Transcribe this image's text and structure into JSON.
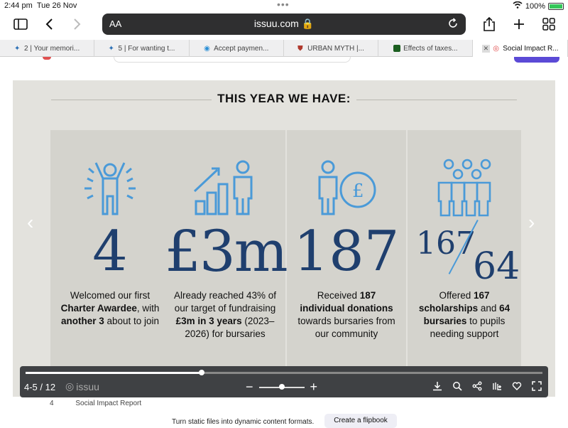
{
  "status": {
    "time": "2:44 pm",
    "date": "Tue 26 Nov",
    "battery": "100%"
  },
  "browser": {
    "aa_label": "AA",
    "url": "issuu.com",
    "tabs": [
      {
        "label": "2 | Your memori...",
        "active": false
      },
      {
        "label": "5 | For wanting t...",
        "active": false
      },
      {
        "label": "Accept paymen...",
        "active": false
      },
      {
        "label": "URBAN MYTH |...",
        "active": false
      },
      {
        "label": "Effects of taxes...",
        "active": false
      },
      {
        "label": "Social Impact R...",
        "active": true
      }
    ]
  },
  "doc": {
    "heading": "THIS YEAR WE HAVE:",
    "panels": [
      {
        "icon": "celebrating-person-icon",
        "figure": "4",
        "desc_html": "Welcomed our first <b>Charter Awardee</b>, with <b>another 3</b> about to join"
      },
      {
        "icon": "growth-chart-person-icon",
        "figure": "£3m",
        "desc_html": "Already reached 43% of our target of fundraising <b>£3m in 3 years</b> (2023–2026) for bursaries"
      },
      {
        "icon": "person-pound-coin-icon",
        "figure": "187",
        "desc_html": "Received <b>187 individual donations</b> towards bursaries from our community"
      },
      {
        "icon": "group-of-people-icon",
        "figure_top": "167",
        "figure_bottom": "64",
        "desc_html": "Offered <b>167 scholarships</b> and <b>64 bursaries</b> to pupils needing support"
      }
    ]
  },
  "viewer": {
    "pages": "4-5 / 12",
    "brand": "issuu",
    "progress": 0.34,
    "footer_page": "4",
    "footer_title": "Social Impact Report"
  },
  "promo": {
    "text": "Turn static files into dynamic content formats.",
    "cta": "Create a flipbook"
  },
  "colors": {
    "accent": "#1f3f6e",
    "icon_blue": "#4a9ad8",
    "doc_bg": "#e3e2dd"
  }
}
